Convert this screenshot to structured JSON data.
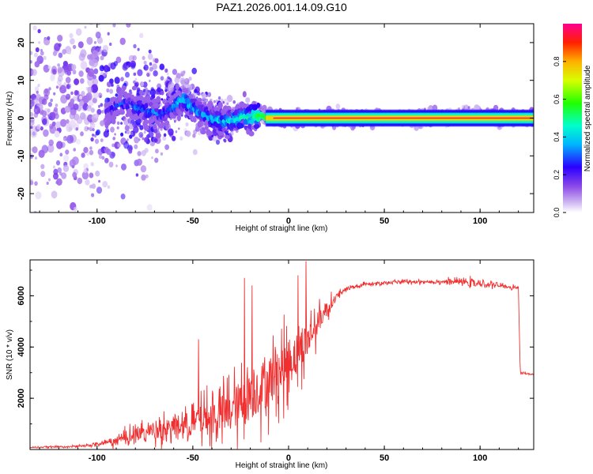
{
  "title": "PAZ1.2026.001.14.09.G10",
  "chart_data": [
    {
      "type": "heatmap",
      "name": "spectrogram",
      "title": "PAZ1.2026.001.14.09.G10",
      "xlabel": "Height of straight line (km)",
      "ylabel": "Frequency (Hz)",
      "xlim": [
        -135,
        128
      ],
      "ylim": [
        -25,
        25
      ],
      "xticks": [
        -100,
        -50,
        0,
        50,
        100
      ],
      "yticks": [
        -20,
        -10,
        0,
        10,
        20
      ],
      "colorbar": {
        "label": "Normalized spectral amplitude",
        "range": [
          0.0,
          1.0
        ],
        "ticks": [
          0.0,
          0.2,
          0.4,
          0.6,
          0.8
        ],
        "colormap": [
          "#ffffff",
          "#a87be4",
          "#5b1ee2",
          "#0000ff",
          "#00ffff",
          "#00ff00",
          "#ffff00",
          "#ff0000",
          "#ff0080"
        ]
      },
      "ridge": {
        "description_free": true,
        "x_km": [
          -95,
          -85,
          -75,
          -65,
          -55,
          -45,
          -35,
          -25,
          -15,
          -5,
          5,
          20,
          40,
          60,
          80,
          95,
          110,
          128
        ],
        "center_freq_hz": [
          2,
          4,
          2,
          1,
          5,
          1,
          -1,
          0,
          0.5,
          0,
          0,
          0,
          0,
          0,
          0.3,
          1,
          0,
          0
        ],
        "peak_amplitude": [
          0.25,
          0.3,
          0.35,
          0.3,
          0.4,
          0.35,
          0.4,
          0.45,
          0.55,
          0.75,
          0.85,
          0.9,
          0.92,
          0.93,
          0.9,
          0.85,
          0.92,
          0.9
        ]
      }
    },
    {
      "type": "line",
      "name": "snr",
      "xlabel": "Height of straight line (km)",
      "ylabel": "SNR (10 * v/v)",
      "xlim": [
        -135,
        128
      ],
      "ylim": [
        0,
        7400
      ],
      "xticks": [
        -100,
        -50,
        0,
        50,
        100
      ],
      "yticks": [
        2000,
        4000,
        6000
      ],
      "color": "#f03030",
      "envelope": {
        "x": [
          -135,
          -110,
          -100,
          -90,
          -80,
          -70,
          -60,
          -50,
          -45,
          -40,
          -35,
          -30,
          -25,
          -20,
          -15,
          -10,
          -5,
          0,
          5,
          10,
          15,
          20,
          25,
          30,
          40,
          50,
          60,
          70,
          80,
          90,
          95,
          100,
          105,
          110,
          115,
          120,
          121,
          125,
          128
        ],
        "mean": [
          80,
          120,
          200,
          350,
          600,
          750,
          900,
          1000,
          1150,
          1250,
          1400,
          1550,
          1800,
          2100,
          2400,
          2700,
          3050,
          3400,
          3800,
          4300,
          4900,
          5500,
          5950,
          6250,
          6450,
          6500,
          6550,
          6550,
          6550,
          6550,
          6500,
          6450,
          6450,
          6400,
          6350,
          6300,
          3000,
          2950,
          2950
        ],
        "spread": [
          40,
          60,
          120,
          350,
          550,
          700,
          900,
          1100,
          1300,
          1500,
          1600,
          1700,
          2000,
          2100,
          2200,
          2200,
          2100,
          2000,
          1800,
          1500,
          1000,
          600,
          300,
          180,
          120,
          120,
          120,
          120,
          140,
          180,
          220,
          200,
          160,
          140,
          140,
          130,
          80,
          60,
          60
        ]
      },
      "annotations_peaks": [
        {
          "x": -23,
          "y": 6700
        },
        {
          "x": -19,
          "y": 6400
        },
        {
          "x": 9,
          "y": 7350
        },
        {
          "x": 5,
          "y": 6800
        },
        {
          "x": -47,
          "y": 4300
        }
      ]
    }
  ]
}
